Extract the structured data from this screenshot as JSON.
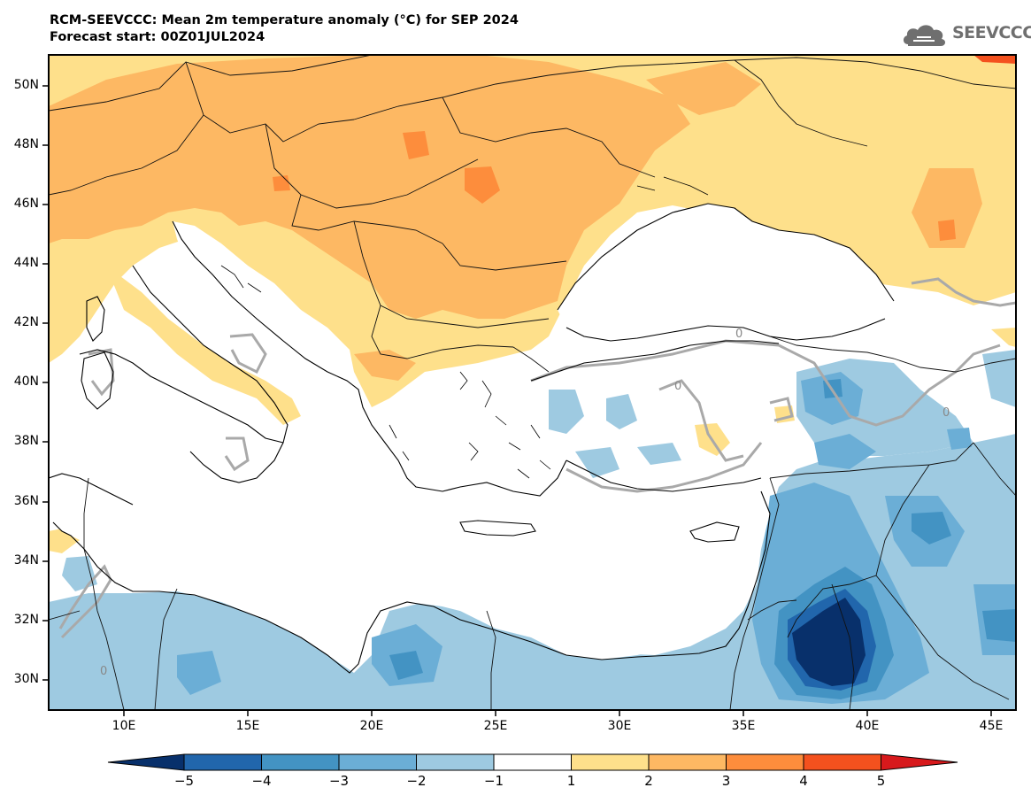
{
  "header": {
    "title_line1": "RCM-SEEVCCC: Mean 2m temperature anomaly (°C) for SEP 2024",
    "title_line2": "Forecast start: 00Z01JUL2024"
  },
  "logo": {
    "text": "SEEVCCC",
    "icon": "cloud-icon"
  },
  "map": {
    "lat_ticks": [
      "50N",
      "48N",
      "46N",
      "44N",
      "42N",
      "40N",
      "38N",
      "36N",
      "34N",
      "32N",
      "30N"
    ],
    "lon_ticks": [
      "10E",
      "15E",
      "20E",
      "25E",
      "30E",
      "35E",
      "40E",
      "45E"
    ],
    "contour_labels": [
      "0",
      "0",
      "0",
      "0"
    ]
  },
  "colorbar": {
    "labels": [
      "−5",
      "−4",
      "−3",
      "−2",
      "−1",
      "1",
      "2",
      "3",
      "4",
      "5"
    ],
    "colors": [
      "#08306b",
      "#2166ac",
      "#4393c3",
      "#6baed6",
      "#9ecae1",
      "#ffffff",
      "#fee08b",
      "#fdb863",
      "#fd8d3c",
      "#f4511e",
      "#d7191c"
    ]
  }
}
